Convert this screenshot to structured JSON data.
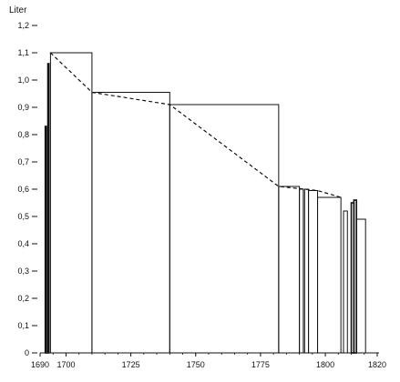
{
  "chart_data": {
    "type": "bar",
    "ylabel": "Liter",
    "xlim": [
      1690,
      1820
    ],
    "ylim": [
      0,
      1.2
    ],
    "grid": false,
    "colors": {
      "ink": "#111111",
      "background": "#ffffff"
    },
    "x_ticks": [
      {
        "value": 1690,
        "label": "1690"
      },
      {
        "value": 1700,
        "label": "1700"
      },
      {
        "value": 1725,
        "label": "1725"
      },
      {
        "value": 1750,
        "label": "1750"
      },
      {
        "value": 1775,
        "label": "1775"
      },
      {
        "value": 1800,
        "label": "1800"
      },
      {
        "value": 1820,
        "label": "1820"
      }
    ],
    "y_ticks": [
      {
        "value": 0,
        "label": "0"
      },
      {
        "value": 0.1,
        "label": "0,1"
      },
      {
        "value": 0.2,
        "label": "0,2"
      },
      {
        "value": 0.3,
        "label": "0,3"
      },
      {
        "value": 0.4,
        "label": "0,4"
      },
      {
        "value": 0.5,
        "label": "0,5"
      },
      {
        "value": 0.6,
        "label": "0,6"
      },
      {
        "value": 0.7,
        "label": "0,7"
      },
      {
        "value": 0.8,
        "label": "0,8"
      },
      {
        "value": 0.9,
        "label": "0,9"
      },
      {
        "value": 1.0,
        "label": "1,0"
      },
      {
        "value": 1.1,
        "label": "1,1"
      },
      {
        "value": 1.2,
        "label": "1,2"
      }
    ],
    "bars": [
      {
        "x0": 1692.0,
        "x1": 1692.4,
        "y": 0.83
      },
      {
        "x0": 1693.0,
        "x1": 1693.4,
        "y": 1.06
      },
      {
        "x0": 1694.0,
        "x1": 1710.0,
        "y": 1.1
      },
      {
        "x0": 1710.0,
        "x1": 1740.0,
        "y": 0.955
      },
      {
        "x0": 1740.0,
        "x1": 1782.0,
        "y": 0.91
      },
      {
        "x0": 1782.0,
        "x1": 1790.0,
        "y": 0.61
      },
      {
        "x0": 1790.0,
        "x1": 1791.5,
        "y": 0.6
      },
      {
        "x0": 1792.0,
        "x1": 1793.5,
        "y": 0.6
      },
      {
        "x0": 1793.5,
        "x1": 1797.0,
        "y": 0.595
      },
      {
        "x0": 1797.0,
        "x1": 1806.0,
        "y": 0.57
      },
      {
        "x0": 1807.0,
        "x1": 1808.5,
        "y": 0.52
      },
      {
        "x0": 1810.0,
        "x1": 1811.0,
        "y": 0.55
      },
      {
        "x0": 1811.0,
        "x1": 1812.0,
        "y": 0.56
      },
      {
        "x0": 1812.0,
        "x1": 1815.5,
        "y": 0.49
      }
    ],
    "trend_line": {
      "style": "dashed",
      "points": [
        {
          "x": 1694.0,
          "y": 1.1
        },
        {
          "x": 1710.0,
          "y": 0.955
        },
        {
          "x": 1740.0,
          "y": 0.91
        },
        {
          "x": 1782.0,
          "y": 0.61
        },
        {
          "x": 1797.0,
          "y": 0.595
        },
        {
          "x": 1806.0,
          "y": 0.57
        }
      ]
    }
  }
}
